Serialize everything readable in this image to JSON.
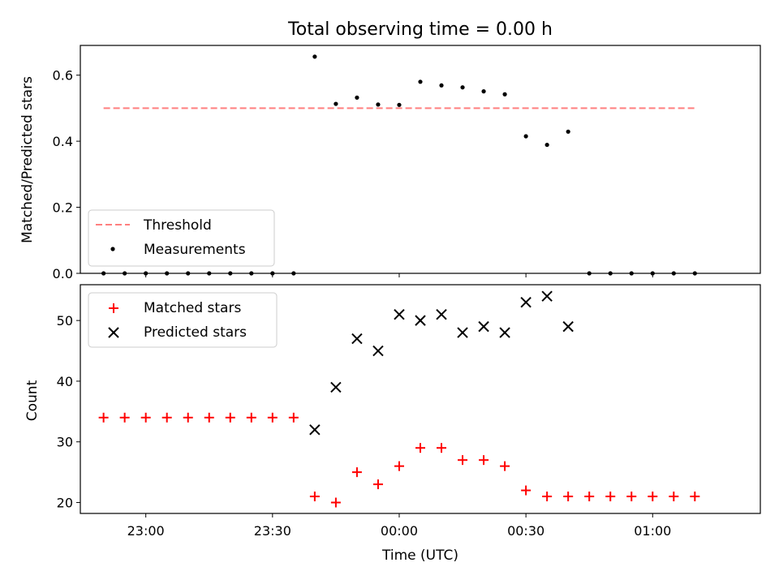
{
  "chart_data": [
    {
      "type": "scatter",
      "title": "Total observing time = 0.00 h",
      "ylabel": "Matched/Predicted stars",
      "ylim": [
        0,
        0.69
      ],
      "yticks": [
        "0.0",
        "0.2",
        "0.4",
        "0.6"
      ],
      "grid": false,
      "legend_position": "lower-left",
      "threshold": {
        "name": "Threshold",
        "value": 0.5,
        "x_start": "22:50",
        "x_end": "01:10",
        "color": "#ff7f7f"
      },
      "series": [
        {
          "name": "Measurements",
          "color": "#000000",
          "points": [
            {
              "x": "22:50",
              "y": 0
            },
            {
              "x": "22:55",
              "y": 0
            },
            {
              "x": "23:00",
              "y": 0
            },
            {
              "x": "23:05",
              "y": 0
            },
            {
              "x": "23:10",
              "y": 0
            },
            {
              "x": "23:15",
              "y": 0
            },
            {
              "x": "23:20",
              "y": 0
            },
            {
              "x": "23:25",
              "y": 0
            },
            {
              "x": "23:30",
              "y": 0
            },
            {
              "x": "23:35",
              "y": 0
            },
            {
              "x": "23:40",
              "y": 0.656
            },
            {
              "x": "23:45",
              "y": 0.513
            },
            {
              "x": "23:50",
              "y": 0.532
            },
            {
              "x": "23:55",
              "y": 0.511
            },
            {
              "x": "00:00",
              "y": 0.51
            },
            {
              "x": "00:05",
              "y": 0.58
            },
            {
              "x": "00:10",
              "y": 0.569
            },
            {
              "x": "00:15",
              "y": 0.563
            },
            {
              "x": "00:20",
              "y": 0.551
            },
            {
              "x": "00:25",
              "y": 0.542
            },
            {
              "x": "00:30",
              "y": 0.415
            },
            {
              "x": "00:35",
              "y": 0.389
            },
            {
              "x": "00:40",
              "y": 0.429
            },
            {
              "x": "00:45",
              "y": 0
            },
            {
              "x": "00:50",
              "y": 0
            },
            {
              "x": "00:55",
              "y": 0
            },
            {
              "x": "01:00",
              "y": 0
            },
            {
              "x": "01:05",
              "y": 0
            },
            {
              "x": "01:10",
              "y": 0
            }
          ]
        }
      ]
    },
    {
      "type": "scatter",
      "xlabel": "Time (UTC)",
      "ylabel": "Count",
      "ylim": [
        18.2,
        55.9
      ],
      "yticks": [
        "20",
        "30",
        "40",
        "50"
      ],
      "xticks": [
        "23:00",
        "23:30",
        "00:00",
        "00:30",
        "01:00"
      ],
      "grid": false,
      "legend_position": "upper-left",
      "series": [
        {
          "name": "Matched stars",
          "marker": "plus",
          "color": "#ff0000",
          "points": [
            {
              "x": "22:50",
              "y": 34
            },
            {
              "x": "22:55",
              "y": 34
            },
            {
              "x": "23:00",
              "y": 34
            },
            {
              "x": "23:05",
              "y": 34
            },
            {
              "x": "23:10",
              "y": 34
            },
            {
              "x": "23:15",
              "y": 34
            },
            {
              "x": "23:20",
              "y": 34
            },
            {
              "x": "23:25",
              "y": 34
            },
            {
              "x": "23:30",
              "y": 34
            },
            {
              "x": "23:35",
              "y": 34
            },
            {
              "x": "23:40",
              "y": 21
            },
            {
              "x": "23:45",
              "y": 20
            },
            {
              "x": "23:50",
              "y": 25
            },
            {
              "x": "23:55",
              "y": 23
            },
            {
              "x": "00:00",
              "y": 26
            },
            {
              "x": "00:05",
              "y": 29
            },
            {
              "x": "00:10",
              "y": 29
            },
            {
              "x": "00:15",
              "y": 27
            },
            {
              "x": "00:20",
              "y": 27
            },
            {
              "x": "00:25",
              "y": 26
            },
            {
              "x": "00:30",
              "y": 22
            },
            {
              "x": "00:35",
              "y": 21
            },
            {
              "x": "00:40",
              "y": 21
            },
            {
              "x": "00:45",
              "y": 21
            },
            {
              "x": "00:50",
              "y": 21
            },
            {
              "x": "00:55",
              "y": 21
            },
            {
              "x": "01:00",
              "y": 21
            },
            {
              "x": "01:05",
              "y": 21
            },
            {
              "x": "01:10",
              "y": 21
            }
          ]
        },
        {
          "name": "Predicted stars",
          "marker": "x",
          "color": "#000000",
          "points": [
            {
              "x": "23:40",
              "y": 32
            },
            {
              "x": "23:45",
              "y": 39
            },
            {
              "x": "23:50",
              "y": 47
            },
            {
              "x": "23:55",
              "y": 45
            },
            {
              "x": "00:00",
              "y": 51
            },
            {
              "x": "00:05",
              "y": 50
            },
            {
              "x": "00:10",
              "y": 51
            },
            {
              "x": "00:15",
              "y": 48
            },
            {
              "x": "00:20",
              "y": 49
            },
            {
              "x": "00:25",
              "y": 48
            },
            {
              "x": "00:30",
              "y": 53
            },
            {
              "x": "00:35",
              "y": 54
            },
            {
              "x": "00:40",
              "y": 49
            }
          ]
        }
      ]
    }
  ]
}
